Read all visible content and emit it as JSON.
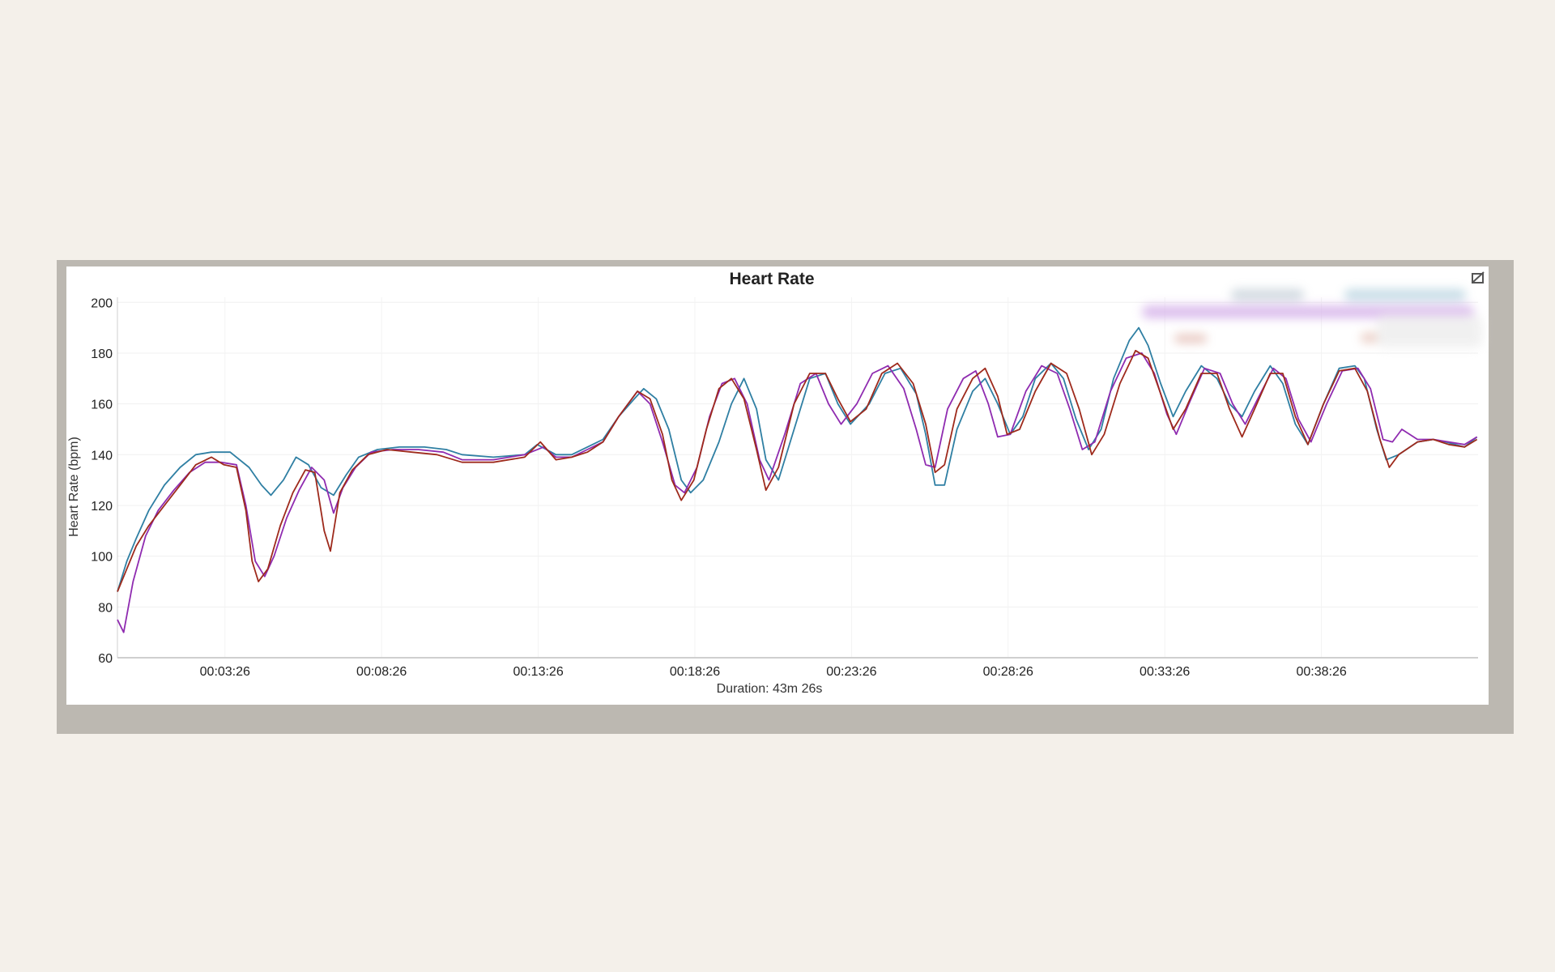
{
  "chart_data": {
    "type": "line",
    "title": "Heart Rate",
    "xlabel": "Duration: 43m 26s",
    "ylabel": "Heart Rate (bpm)",
    "y_ticks": [
      60,
      80,
      100,
      120,
      140,
      160,
      180,
      200
    ],
    "x_ticks": [
      "00:03:26",
      "00:08:26",
      "00:13:26",
      "00:18:26",
      "00:23:26",
      "00:28:26",
      "00:33:26",
      "00:38:26"
    ],
    "x_tick_minutes": [
      3.433,
      8.433,
      13.433,
      18.433,
      23.433,
      28.433,
      33.433,
      38.433
    ],
    "xlim_minutes": [
      0,
      43.433
    ],
    "ylim": [
      60,
      202
    ],
    "grid": true,
    "legend_placement": "top-right (obscured)",
    "series": [
      {
        "color": "#2f7fa3",
        "points": [
          [
            0,
            86
          ],
          [
            0.3,
            98
          ],
          [
            0.6,
            107
          ],
          [
            1,
            118
          ],
          [
            1.5,
            128
          ],
          [
            2,
            135
          ],
          [
            2.5,
            140
          ],
          [
            3,
            141
          ],
          [
            3.6,
            141
          ],
          [
            4.2,
            135
          ],
          [
            4.6,
            128
          ],
          [
            4.9,
            124
          ],
          [
            5.3,
            130
          ],
          [
            5.7,
            139
          ],
          [
            6.1,
            136
          ],
          [
            6.5,
            127
          ],
          [
            6.9,
            124
          ],
          [
            7.3,
            132
          ],
          [
            7.7,
            139
          ],
          [
            8.3,
            142
          ],
          [
            9,
            143
          ],
          [
            9.8,
            143
          ],
          [
            10.5,
            142
          ],
          [
            11,
            140
          ],
          [
            12,
            139
          ],
          [
            13,
            140
          ],
          [
            13.4,
            144
          ],
          [
            14,
            140
          ],
          [
            14.5,
            140
          ],
          [
            15,
            143
          ],
          [
            15.5,
            146
          ],
          [
            16,
            155
          ],
          [
            16.5,
            162
          ],
          [
            16.8,
            166
          ],
          [
            17.2,
            162
          ],
          [
            17.6,
            150
          ],
          [
            18,
            130
          ],
          [
            18.3,
            125
          ],
          [
            18.7,
            130
          ],
          [
            19.2,
            145
          ],
          [
            19.6,
            160
          ],
          [
            20,
            170
          ],
          [
            20.4,
            158
          ],
          [
            20.7,
            138
          ],
          [
            21.1,
            130
          ],
          [
            21.6,
            150
          ],
          [
            22.1,
            170
          ],
          [
            22.6,
            172
          ],
          [
            23,
            160
          ],
          [
            23.4,
            152
          ],
          [
            24,
            160
          ],
          [
            24.5,
            172
          ],
          [
            25,
            174
          ],
          [
            25.5,
            164
          ],
          [
            25.8,
            148
          ],
          [
            26.1,
            128
          ],
          [
            26.4,
            128
          ],
          [
            26.8,
            150
          ],
          [
            27.3,
            165
          ],
          [
            27.7,
            170
          ],
          [
            28.1,
            160
          ],
          [
            28.5,
            148
          ],
          [
            28.9,
            155
          ],
          [
            29.3,
            170
          ],
          [
            29.8,
            176
          ],
          [
            30.2,
            170
          ],
          [
            30.6,
            154
          ],
          [
            31,
            142
          ],
          [
            31.4,
            150
          ],
          [
            31.8,
            170
          ],
          [
            32.3,
            185
          ],
          [
            32.6,
            190
          ],
          [
            32.9,
            183
          ],
          [
            33.3,
            168
          ],
          [
            33.7,
            155
          ],
          [
            34.1,
            165
          ],
          [
            34.6,
            175
          ],
          [
            35.1,
            170
          ],
          [
            35.5,
            160
          ],
          [
            35.9,
            155
          ],
          [
            36.3,
            165
          ],
          [
            36.8,
            175
          ],
          [
            37.2,
            168
          ],
          [
            37.6,
            152
          ],
          [
            38,
            144
          ],
          [
            38.5,
            160
          ],
          [
            39,
            174
          ],
          [
            39.5,
            175
          ],
          [
            39.8,
            170
          ],
          [
            40.2,
            150
          ],
          [
            40.5,
            138
          ],
          [
            40.9,
            140
          ],
          [
            41.5,
            145
          ],
          [
            42,
            146
          ],
          [
            42.4,
            145
          ],
          [
            43,
            143
          ],
          [
            43.4,
            147
          ]
        ]
      },
      {
        "color": "#8f2bb0",
        "points": [
          [
            0,
            75
          ],
          [
            0.2,
            70
          ],
          [
            0.5,
            90
          ],
          [
            0.9,
            108
          ],
          [
            1.3,
            118
          ],
          [
            1.8,
            126
          ],
          [
            2.3,
            133
          ],
          [
            2.8,
            137
          ],
          [
            3.3,
            137
          ],
          [
            3.8,
            136
          ],
          [
            4.1,
            120
          ],
          [
            4.4,
            98
          ],
          [
            4.7,
            92
          ],
          [
            5,
            100
          ],
          [
            5.4,
            115
          ],
          [
            5.8,
            126
          ],
          [
            6.2,
            135
          ],
          [
            6.6,
            130
          ],
          [
            6.9,
            117
          ],
          [
            7.2,
            127
          ],
          [
            7.6,
            135
          ],
          [
            8.1,
            141
          ],
          [
            8.8,
            142
          ],
          [
            9.6,
            142
          ],
          [
            10.4,
            141
          ],
          [
            11,
            138
          ],
          [
            12,
            138
          ],
          [
            13,
            140
          ],
          [
            13.6,
            143
          ],
          [
            14,
            139
          ],
          [
            14.5,
            139
          ],
          [
            15,
            142
          ],
          [
            15.5,
            145
          ],
          [
            16,
            155
          ],
          [
            16.6,
            165
          ],
          [
            17,
            160
          ],
          [
            17.4,
            145
          ],
          [
            17.8,
            128
          ],
          [
            18.1,
            125
          ],
          [
            18.5,
            135
          ],
          [
            18.9,
            155
          ],
          [
            19.3,
            168
          ],
          [
            19.7,
            170
          ],
          [
            20.1,
            160
          ],
          [
            20.5,
            138
          ],
          [
            20.8,
            130
          ],
          [
            21.3,
            148
          ],
          [
            21.8,
            168
          ],
          [
            22.3,
            172
          ],
          [
            22.7,
            160
          ],
          [
            23.1,
            152
          ],
          [
            23.6,
            160
          ],
          [
            24.1,
            172
          ],
          [
            24.6,
            175
          ],
          [
            25.1,
            166
          ],
          [
            25.5,
            150
          ],
          [
            25.8,
            136
          ],
          [
            26.1,
            135
          ],
          [
            26.5,
            158
          ],
          [
            27,
            170
          ],
          [
            27.4,
            173
          ],
          [
            27.8,
            160
          ],
          [
            28.1,
            147
          ],
          [
            28.5,
            148
          ],
          [
            29,
            165
          ],
          [
            29.5,
            175
          ],
          [
            30,
            172
          ],
          [
            30.4,
            158
          ],
          [
            30.8,
            142
          ],
          [
            31.2,
            145
          ],
          [
            31.7,
            165
          ],
          [
            32.2,
            178
          ],
          [
            32.7,
            180
          ],
          [
            33.1,
            172
          ],
          [
            33.5,
            156
          ],
          [
            33.8,
            148
          ],
          [
            34.2,
            160
          ],
          [
            34.7,
            174
          ],
          [
            35.2,
            172
          ],
          [
            35.6,
            160
          ],
          [
            36,
            152
          ],
          [
            36.4,
            162
          ],
          [
            36.9,
            174
          ],
          [
            37.3,
            170
          ],
          [
            37.7,
            154
          ],
          [
            38.1,
            145
          ],
          [
            38.6,
            160
          ],
          [
            39.1,
            173
          ],
          [
            39.6,
            174
          ],
          [
            40,
            166
          ],
          [
            40.4,
            146
          ],
          [
            40.7,
            145
          ],
          [
            41,
            150
          ],
          [
            41.5,
            146
          ],
          [
            42,
            146
          ],
          [
            42.5,
            145
          ],
          [
            43,
            144
          ],
          [
            43.4,
            147
          ]
        ]
      },
      {
        "color": "#9e2a1c",
        "points": [
          [
            0,
            86
          ],
          [
            0.3,
            95
          ],
          [
            0.6,
            104
          ],
          [
            1,
            112
          ],
          [
            1.5,
            120
          ],
          [
            2,
            128
          ],
          [
            2.5,
            136
          ],
          [
            3,
            139
          ],
          [
            3.4,
            136
          ],
          [
            3.8,
            135
          ],
          [
            4.1,
            118
          ],
          [
            4.3,
            98
          ],
          [
            4.5,
            90
          ],
          [
            4.8,
            95
          ],
          [
            5.2,
            112
          ],
          [
            5.6,
            125
          ],
          [
            6,
            134
          ],
          [
            6.3,
            133
          ],
          [
            6.6,
            110
          ],
          [
            6.8,
            102
          ],
          [
            7.1,
            125
          ],
          [
            7.5,
            134
          ],
          [
            8,
            140
          ],
          [
            8.6,
            142
          ],
          [
            9.4,
            141
          ],
          [
            10.2,
            140
          ],
          [
            11,
            137
          ],
          [
            12,
            137
          ],
          [
            13,
            139
          ],
          [
            13.5,
            145
          ],
          [
            14,
            138
          ],
          [
            14.5,
            139
          ],
          [
            15,
            141
          ],
          [
            15.5,
            145
          ],
          [
            16,
            155
          ],
          [
            16.6,
            165
          ],
          [
            17,
            162
          ],
          [
            17.4,
            148
          ],
          [
            17.7,
            130
          ],
          [
            18,
            122
          ],
          [
            18.4,
            130
          ],
          [
            18.8,
            150
          ],
          [
            19.2,
            166
          ],
          [
            19.6,
            170
          ],
          [
            20,
            162
          ],
          [
            20.4,
            142
          ],
          [
            20.7,
            126
          ],
          [
            21.1,
            135
          ],
          [
            21.6,
            160
          ],
          [
            22.1,
            172
          ],
          [
            22.6,
            172
          ],
          [
            23,
            162
          ],
          [
            23.4,
            153
          ],
          [
            23.9,
            158
          ],
          [
            24.4,
            172
          ],
          [
            24.9,
            176
          ],
          [
            25.4,
            168
          ],
          [
            25.8,
            152
          ],
          [
            26.1,
            133
          ],
          [
            26.4,
            136
          ],
          [
            26.8,
            158
          ],
          [
            27.3,
            170
          ],
          [
            27.7,
            174
          ],
          [
            28.1,
            163
          ],
          [
            28.4,
            148
          ],
          [
            28.8,
            150
          ],
          [
            29.3,
            165
          ],
          [
            29.8,
            176
          ],
          [
            30.3,
            172
          ],
          [
            30.7,
            158
          ],
          [
            31.1,
            140
          ],
          [
            31.5,
            148
          ],
          [
            32,
            168
          ],
          [
            32.5,
            181
          ],
          [
            32.9,
            178
          ],
          [
            33.3,
            164
          ],
          [
            33.7,
            150
          ],
          [
            34.1,
            158
          ],
          [
            34.6,
            172
          ],
          [
            35.1,
            172
          ],
          [
            35.5,
            158
          ],
          [
            35.9,
            147
          ],
          [
            36.3,
            158
          ],
          [
            36.8,
            172
          ],
          [
            37.2,
            172
          ],
          [
            37.6,
            155
          ],
          [
            38,
            144
          ],
          [
            38.5,
            160
          ],
          [
            39,
            173
          ],
          [
            39.5,
            174
          ],
          [
            39.9,
            165
          ],
          [
            40.3,
            146
          ],
          [
            40.6,
            135
          ],
          [
            40.9,
            140
          ],
          [
            41.5,
            145
          ],
          [
            42,
            146
          ],
          [
            42.5,
            144
          ],
          [
            43,
            143
          ],
          [
            43.4,
            146
          ]
        ]
      }
    ]
  }
}
